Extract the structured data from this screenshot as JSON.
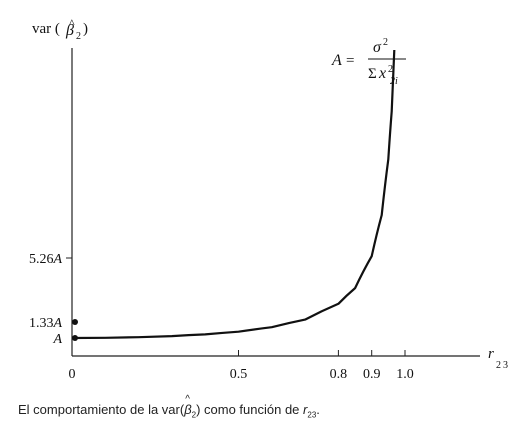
{
  "chart_data": {
    "type": "line",
    "title": "",
    "ylabel": "var (β̂2)",
    "xlabel": "r23",
    "xlim": [
      0,
      1.0
    ],
    "grid": false,
    "x_ticks": [
      "0",
      "0.5",
      "0.8",
      "0.9",
      "1.0"
    ],
    "y_ticks": [
      "A",
      "1.33A",
      "5.26A"
    ],
    "points": [
      {
        "x": 0.0,
        "label": "A"
      },
      {
        "x": 0.5,
        "label": "1.33A"
      },
      {
        "x": 0.9,
        "label": "5.26A"
      }
    ],
    "formula_lhs": "A =",
    "formula_num": "σ2",
    "formula_den": "Σx2i",
    "series": [
      {
        "name": "",
        "x": [
          0.0,
          0.1,
          0.2,
          0.3,
          0.4,
          0.5,
          0.6,
          0.7,
          0.8,
          0.85,
          0.9,
          0.93,
          0.95,
          0.96,
          0.97,
          0.975,
          0.98,
          0.985,
          0.99
        ],
        "y": [
          1.0,
          1.01,
          1.04,
          1.1,
          1.19,
          1.33,
          1.56,
          1.96,
          2.78,
          3.6,
          5.26,
          7.4,
          10.3,
          12.8,
          16.9,
          20.3,
          25.3,
          33.7,
          50.3
        ]
      }
    ],
    "annotation": "A = σ²/Σx²2i"
  },
  "caption": {
    "prefix": "El comportamiento de la var(",
    "beta": "β",
    "beta_sub": "2",
    "middle": ") como función de ",
    "r": "r",
    "r_sub": "23",
    "suffix": "."
  }
}
